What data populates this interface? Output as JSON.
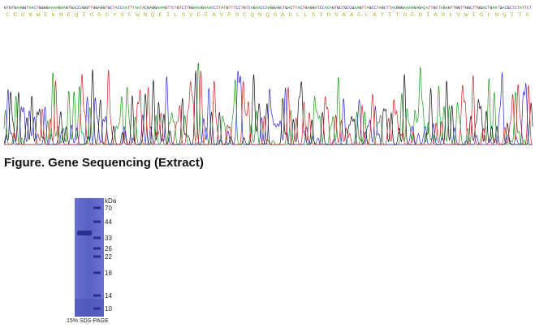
{
  "sequence": {
    "dna": "GTGTGAAGGTAACTGGGGAAAAGAAGTGACCAGGTTGGAGGTGCTACCAATTTAATACGAGGAAAGTTCTGTCTTGGAAAGAAACCTTATGTTTCCTGTCAGAACCAAGGAGCTGACTTACTGAGGATCCACAGTGCTGCCGAAGTTAGCCTAGCTTACGGGAAAAGAGACATTGCTAGAGTTGGTTGGCTTGGACTGAATGACGCTCTATTCT",
    "protein": "C E G N W E K N E Q I G G C Y G F W N Q E I L S V E E A V P S C Q N Q G A D L L S I H S A A E L A Y I T G E D I A R L V W I G L N Q I T S"
  },
  "figure_caption": "Figure. Gene Sequencing (Extract)",
  "gel": {
    "unit": "kDa",
    "markers": [
      "70",
      "44",
      "33",
      "26",
      "22",
      "18",
      "14",
      "10"
    ],
    "caption": "15% SDS-PAGE"
  }
}
